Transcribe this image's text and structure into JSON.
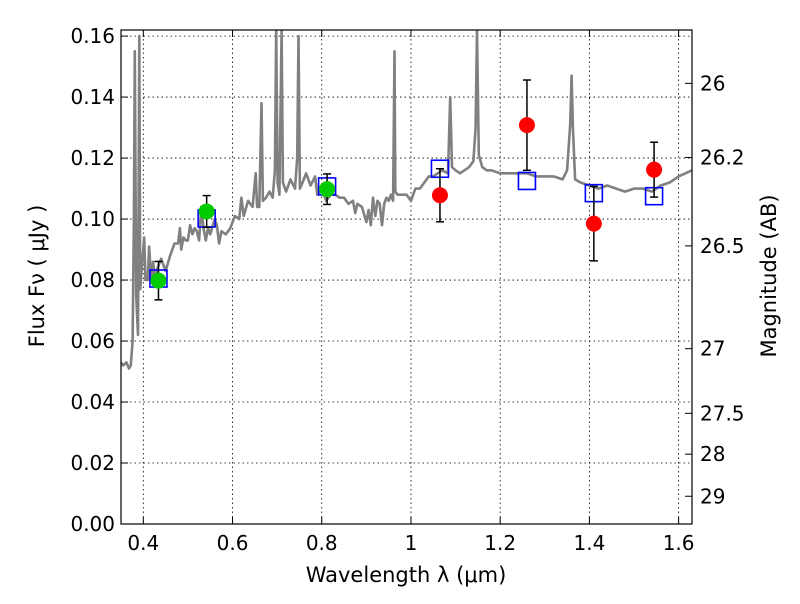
{
  "chart_data": {
    "type": "scatter",
    "xlabel": "Wavelength  λ (μm)",
    "ylabel": "Flux  Fν  ( μJy )",
    "y2label": "Magnitude (AB)",
    "xlim": [
      0.35,
      1.63
    ],
    "ylim": [
      0.0,
      0.162
    ],
    "xticks": [
      0.4,
      0.6,
      0.8,
      1.0,
      1.2,
      1.4,
      1.6
    ],
    "xtick_labels": [
      "0.4",
      "0.6",
      "0.8",
      "1",
      "1.2",
      "1.4",
      "1.6"
    ],
    "yticks": [
      0.0,
      0.02,
      0.04,
      0.06,
      0.08,
      0.1,
      0.12,
      0.14,
      0.16
    ],
    "ytick_labels": [
      "0.00",
      "0.02",
      "0.04",
      "0.06",
      "0.08",
      "0.10",
      "0.12",
      "0.14",
      "0.16"
    ],
    "y2ticks": [
      {
        "label": "26",
        "flux": 0.1445
      },
      {
        "label": "26.2",
        "flux": 0.1202
      },
      {
        "label": "26.5",
        "flux": 0.0912
      },
      {
        "label": "27",
        "flux": 0.0575
      },
      {
        "label": "27.5",
        "flux": 0.0363
      },
      {
        "label": "28",
        "flux": 0.0229
      },
      {
        "label": "29",
        "flux": 0.0091
      }
    ],
    "grid": true,
    "colors": {
      "spectrum": "#808080",
      "green": "#00cc00",
      "red": "#ff0000",
      "model_square": "#0000ff",
      "errorbar": "#000000"
    },
    "series": [
      {
        "kind": "spectrum",
        "points": [
          [
            0.35,
            0.053
          ],
          [
            0.355,
            0.052
          ],
          [
            0.362,
            0.053
          ],
          [
            0.368,
            0.051
          ],
          [
            0.372,
            0.052
          ],
          [
            0.376,
            0.06
          ],
          [
            0.379,
            0.1
          ],
          [
            0.381,
            0.155
          ],
          [
            0.384,
            0.075
          ],
          [
            0.388,
            0.062
          ],
          [
            0.391,
            0.16
          ],
          [
            0.393,
            0.077
          ],
          [
            0.397,
            0.085
          ],
          [
            0.402,
            0.094
          ],
          [
            0.405,
            0.08
          ],
          [
            0.41,
            0.08
          ],
          [
            0.413,
            0.091
          ],
          [
            0.418,
            0.08
          ],
          [
            0.422,
            0.086
          ],
          [
            0.427,
            0.08
          ],
          [
            0.432,
            0.084
          ],
          [
            0.44,
            0.087
          ],
          [
            0.45,
            0.083
          ],
          [
            0.46,
            0.088
          ],
          [
            0.47,
            0.092
          ],
          [
            0.478,
            0.092
          ],
          [
            0.482,
            0.097
          ],
          [
            0.485,
            0.09
          ],
          [
            0.49,
            0.094
          ],
          [
            0.495,
            0.093
          ],
          [
            0.5,
            0.093
          ],
          [
            0.505,
            0.098
          ],
          [
            0.51,
            0.095
          ],
          [
            0.515,
            0.097
          ],
          [
            0.52,
            0.096
          ],
          [
            0.525,
            0.093
          ],
          [
            0.53,
            0.104
          ],
          [
            0.535,
            0.097
          ],
          [
            0.54,
            0.093
          ],
          [
            0.545,
            0.097
          ],
          [
            0.55,
            0.095
          ],
          [
            0.56,
            0.1
          ],
          [
            0.565,
            0.098
          ],
          [
            0.57,
            0.092
          ],
          [
            0.575,
            0.096
          ],
          [
            0.585,
            0.095
          ],
          [
            0.595,
            0.097
          ],
          [
            0.605,
            0.101
          ],
          [
            0.615,
            0.1
          ],
          [
            0.62,
            0.107
          ],
          [
            0.625,
            0.101
          ],
          [
            0.635,
            0.106
          ],
          [
            0.645,
            0.104
          ],
          [
            0.652,
            0.115
          ],
          [
            0.655,
            0.104
          ],
          [
            0.66,
            0.104
          ],
          [
            0.665,
            0.138
          ],
          [
            0.668,
            0.106
          ],
          [
            0.675,
            0.107
          ],
          [
            0.683,
            0.109
          ],
          [
            0.69,
            0.107
          ],
          [
            0.695,
            0.116
          ],
          [
            0.698,
            0.162
          ],
          [
            0.701,
            0.112
          ],
          [
            0.705,
            0.108
          ],
          [
            0.71,
            0.162
          ],
          [
            0.713,
            0.112
          ],
          [
            0.72,
            0.109
          ],
          [
            0.73,
            0.113
          ],
          [
            0.74,
            0.11
          ],
          [
            0.745,
            0.12
          ],
          [
            0.748,
            0.16
          ],
          [
            0.751,
            0.11
          ],
          [
            0.757,
            0.112
          ],
          [
            0.765,
            0.115
          ],
          [
            0.775,
            0.111
          ],
          [
            0.785,
            0.114
          ],
          [
            0.79,
            0.108
          ],
          [
            0.8,
            0.11
          ],
          [
            0.81,
            0.106
          ],
          [
            0.82,
            0.108
          ],
          [
            0.83,
            0.108
          ],
          [
            0.84,
            0.107
          ],
          [
            0.85,
            0.107
          ],
          [
            0.86,
            0.105
          ],
          [
            0.87,
            0.106
          ],
          [
            0.875,
            0.102
          ],
          [
            0.88,
            0.105
          ],
          [
            0.89,
            0.104
          ],
          [
            0.9,
            0.099
          ],
          [
            0.905,
            0.103
          ],
          [
            0.91,
            0.098
          ],
          [
            0.915,
            0.107
          ],
          [
            0.92,
            0.101
          ],
          [
            0.925,
            0.106
          ],
          [
            0.93,
            0.105
          ],
          [
            0.935,
            0.098
          ],
          [
            0.94,
            0.105
          ],
          [
            0.945,
            0.107
          ],
          [
            0.95,
            0.106
          ],
          [
            0.955,
            0.108
          ],
          [
            0.96,
            0.106
          ],
          [
            0.963,
            0.155
          ],
          [
            0.965,
            0.109
          ],
          [
            0.97,
            0.108
          ],
          [
            0.98,
            0.108
          ],
          [
            0.99,
            0.108
          ],
          [
            1.0,
            0.106
          ],
          [
            1.01,
            0.11
          ],
          [
            1.02,
            0.11
          ],
          [
            1.03,
            0.112
          ],
          [
            1.04,
            0.114
          ],
          [
            1.05,
            0.114
          ],
          [
            1.06,
            0.115
          ],
          [
            1.07,
            0.116
          ],
          [
            1.083,
            0.115
          ],
          [
            1.088,
            0.14
          ],
          [
            1.092,
            0.117
          ],
          [
            1.1,
            0.116
          ],
          [
            1.11,
            0.115
          ],
          [
            1.12,
            0.116
          ],
          [
            1.13,
            0.117
          ],
          [
            1.14,
            0.119
          ],
          [
            1.145,
            0.13
          ],
          [
            1.148,
            0.162
          ],
          [
            1.152,
            0.121
          ],
          [
            1.16,
            0.117
          ],
          [
            1.17,
            0.116
          ],
          [
            1.18,
            0.116
          ],
          [
            1.2,
            0.115
          ],
          [
            1.22,
            0.115
          ],
          [
            1.24,
            0.115
          ],
          [
            1.26,
            0.115
          ],
          [
            1.28,
            0.114
          ],
          [
            1.3,
            0.114
          ],
          [
            1.32,
            0.114
          ],
          [
            1.34,
            0.113
          ],
          [
            1.35,
            0.116
          ],
          [
            1.357,
            0.131
          ],
          [
            1.36,
            0.147
          ],
          [
            1.363,
            0.13
          ],
          [
            1.368,
            0.113
          ],
          [
            1.38,
            0.112
          ],
          [
            1.4,
            0.111
          ],
          [
            1.42,
            0.11
          ],
          [
            1.44,
            0.111
          ],
          [
            1.46,
            0.11
          ],
          [
            1.48,
            0.109
          ],
          [
            1.5,
            0.11
          ],
          [
            1.52,
            0.11
          ],
          [
            1.54,
            0.109
          ],
          [
            1.56,
            0.111
          ],
          [
            1.58,
            0.112
          ],
          [
            1.6,
            0.114
          ],
          [
            1.63,
            0.116
          ]
        ]
      },
      {
        "kind": "model_squares",
        "x": [
          0.434,
          0.542,
          0.812,
          1.065,
          1.26,
          1.41,
          1.545
        ],
        "y": [
          0.0805,
          0.1002,
          0.1107,
          0.1165,
          0.1125,
          0.1085,
          0.1075
        ]
      },
      {
        "kind": "green_points",
        "x": [
          0.434,
          0.542,
          0.812
        ],
        "y": [
          0.0798,
          0.1025,
          0.1098
        ],
        "yerr": [
          0.0063,
          0.0052,
          0.005
        ]
      },
      {
        "kind": "red_points",
        "x": [
          1.065,
          1.26,
          1.41,
          1.545
        ],
        "y": [
          0.1078,
          0.1308,
          0.0985,
          0.1162
        ],
        "yerr": [
          0.0087,
          0.0148,
          0.0122,
          0.009
        ]
      }
    ]
  }
}
